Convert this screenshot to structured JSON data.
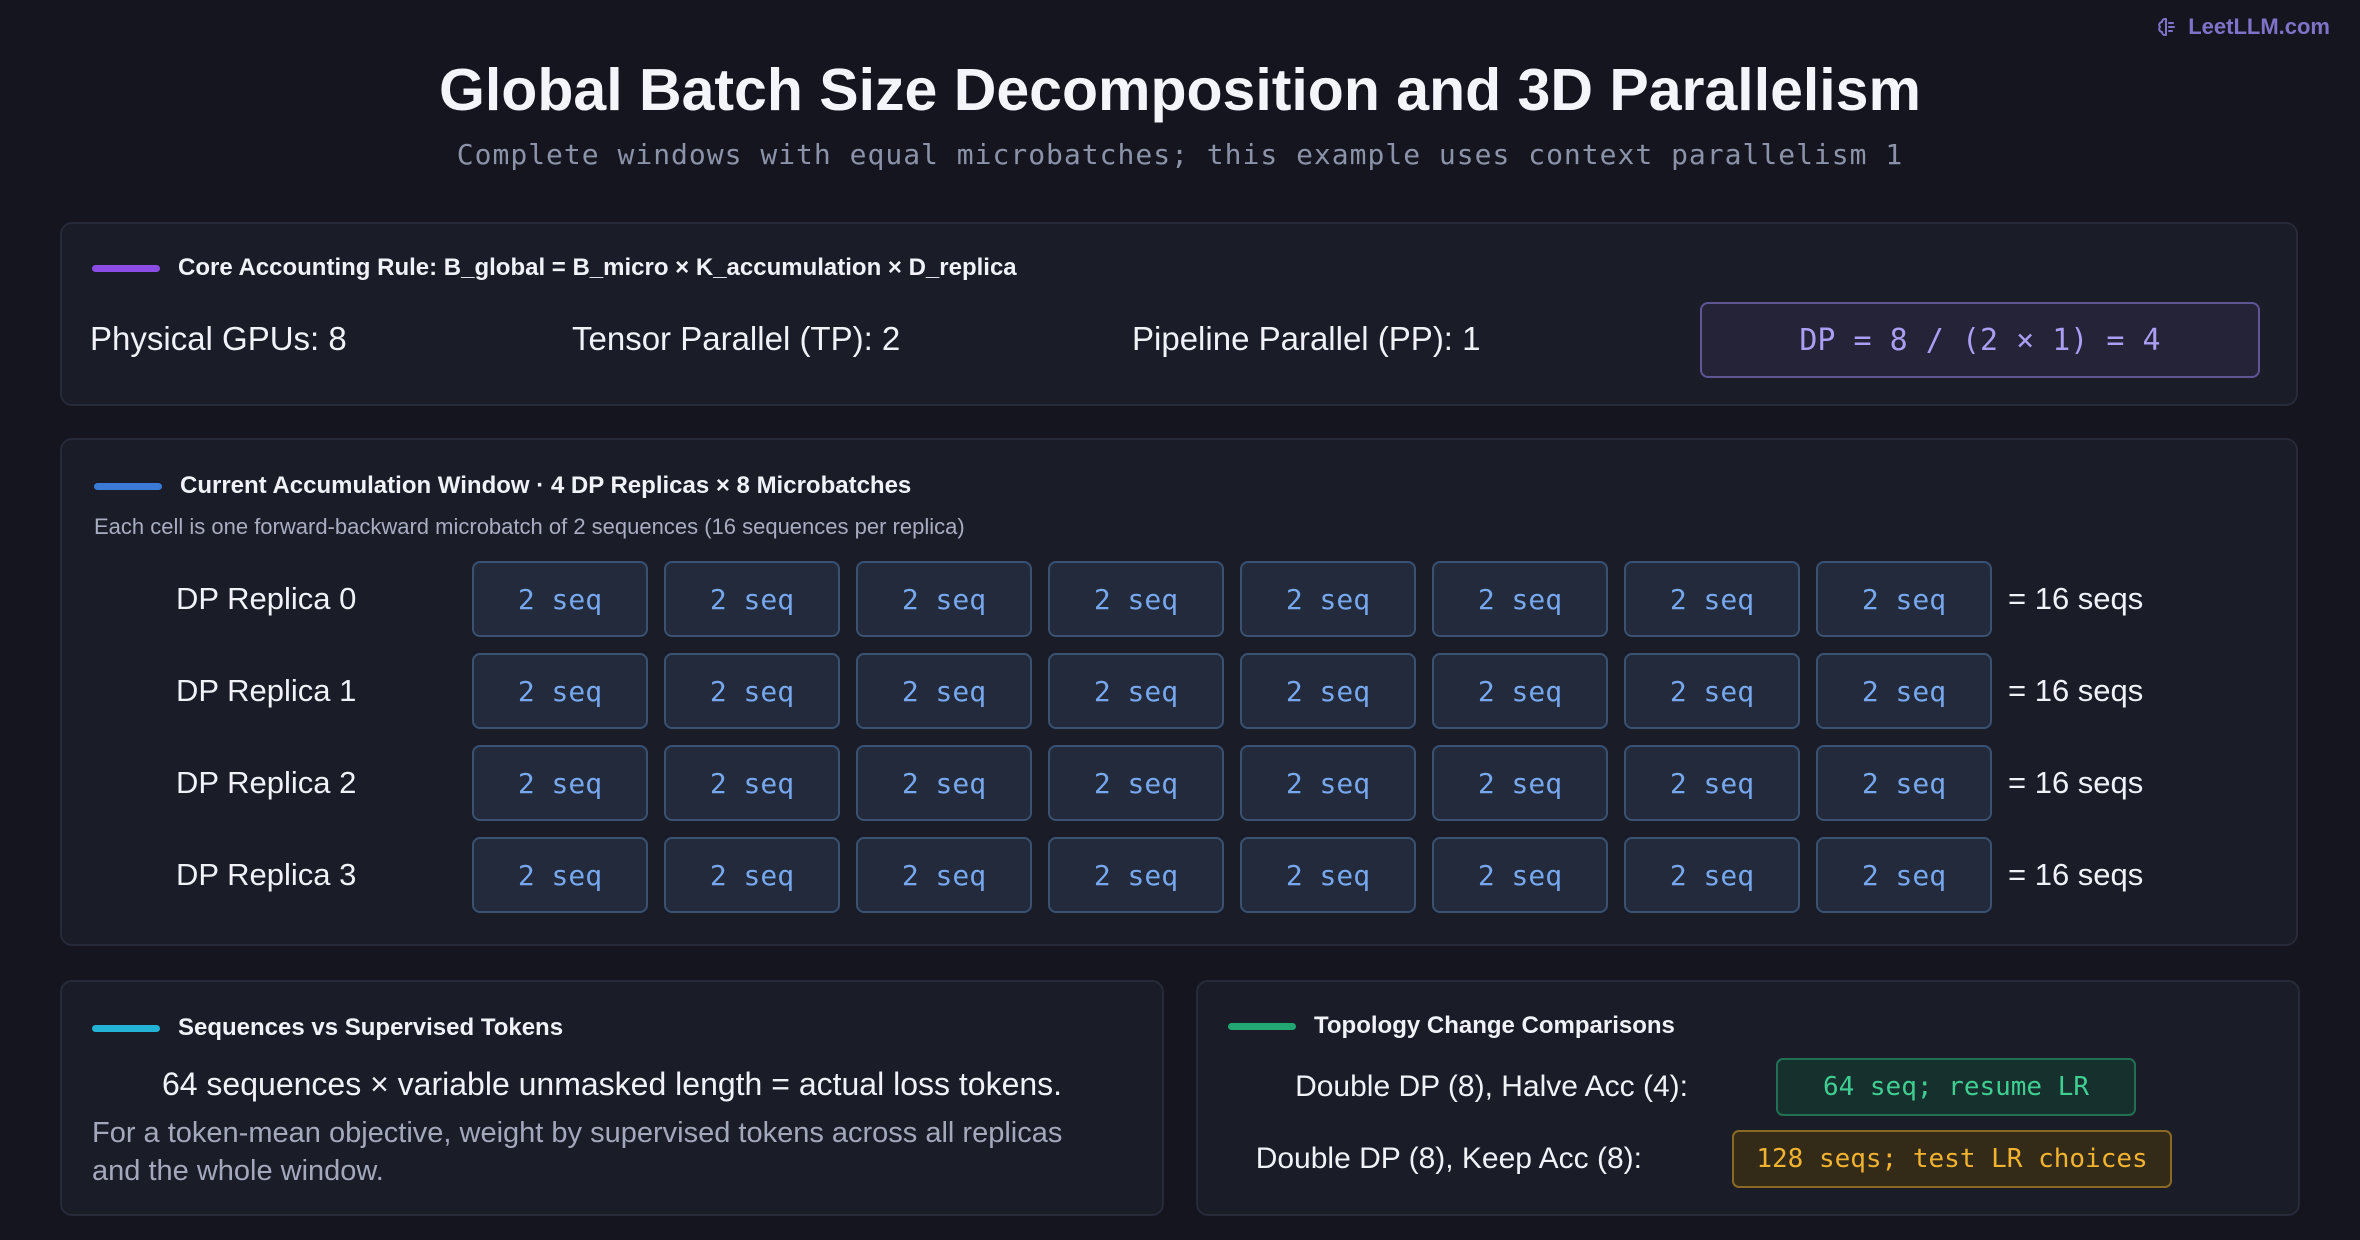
{
  "brand": {
    "name": "LeetLLM.com",
    "icon": "brain-icon",
    "color": "#7f73c9"
  },
  "header": {
    "title": "Global Batch Size Decomposition and 3D Parallelism",
    "subtitle": "Complete windows with equal microbatches; this example uses context parallelism 1"
  },
  "rule_panel": {
    "heading": "Core Accounting Rule: B_global = B_micro × K_accumulation × D_replica",
    "accent": "#8b4de6",
    "gpus": "Physical GPUs: 8",
    "tp": "Tensor Parallel (TP): 2",
    "pp": "Pipeline Parallel (PP): 1",
    "dp_formula": "DP = 8 / (2 × 1) = 4"
  },
  "window_panel": {
    "heading": "Current Accumulation Window · 4 DP Replicas × 8 Microbatches",
    "accent": "#3a7bd8",
    "note": "Each cell is one forward-backward microbatch of 2 sequences (16 sequences per replica)",
    "replicas": [
      {
        "label": "DP Replica 0",
        "cells": [
          "2 seq",
          "2 seq",
          "2 seq",
          "2 seq",
          "2 seq",
          "2 seq",
          "2 seq",
          "2 seq"
        ],
        "total": "= 16 seqs"
      },
      {
        "label": "DP Replica 1",
        "cells": [
          "2 seq",
          "2 seq",
          "2 seq",
          "2 seq",
          "2 seq",
          "2 seq",
          "2 seq",
          "2 seq"
        ],
        "total": "= 16 seqs"
      },
      {
        "label": "DP Replica 2",
        "cells": [
          "2 seq",
          "2 seq",
          "2 seq",
          "2 seq",
          "2 seq",
          "2 seq",
          "2 seq",
          "2 seq"
        ],
        "total": "= 16 seqs"
      },
      {
        "label": "DP Replica 3",
        "cells": [
          "2 seq",
          "2 seq",
          "2 seq",
          "2 seq",
          "2 seq",
          "2 seq",
          "2 seq",
          "2 seq"
        ],
        "total": "= 16 seqs"
      }
    ]
  },
  "tokens_panel": {
    "heading": "Sequences vs Supervised Tokens",
    "accent": "#22b3d6",
    "main": "64 sequences × variable unmasked length = actual loss tokens.",
    "note": "For a token-mean objective, weight by supervised tokens across all replicas and the whole window."
  },
  "topology_panel": {
    "heading": "Topology Change Comparisons",
    "accent": "#22a772",
    "rows": [
      {
        "label": "Double DP (8), Halve Acc (4):",
        "result": "64 seq; resume LR"
      },
      {
        "label": "Double DP (8), Keep Acc (8):",
        "result": "128 seqs; test LR choices"
      }
    ]
  }
}
